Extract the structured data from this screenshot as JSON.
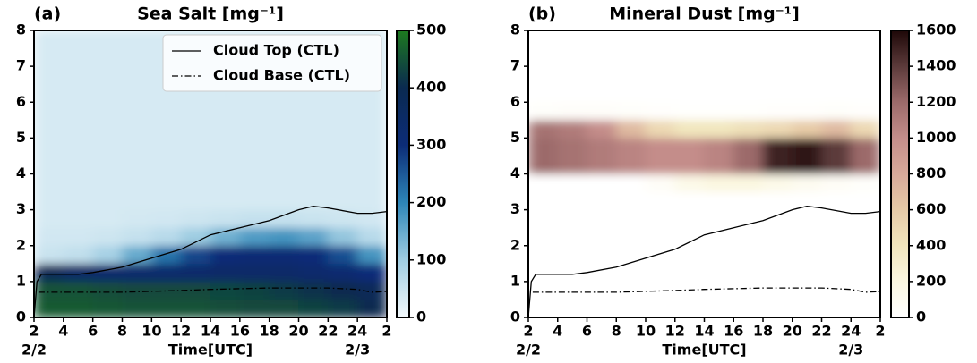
{
  "chart_data": [
    {
      "type": "heatmap",
      "panel_label": "(a)",
      "title": "Sea Salt [mg⁻¹]",
      "xlabel": "Time[UTC]",
      "xlim": [
        2,
        26
      ],
      "ylim": [
        0,
        8
      ],
      "xticks": [
        2,
        4,
        6,
        8,
        10,
        12,
        14,
        16,
        18,
        20,
        22,
        24,
        {
          "value": 26,
          "label": "2"
        }
      ],
      "date_labels": [
        {
          "value": 2,
          "label": "2/2"
        },
        {
          "value": 24,
          "label": "2/3"
        }
      ],
      "yticks": [
        0,
        1,
        2,
        3,
        4,
        5,
        6,
        7,
        8
      ],
      "x_edges": [
        2,
        4,
        6,
        8,
        10,
        12,
        14,
        16,
        18,
        20,
        22,
        24,
        26
      ],
      "y_edges": [
        0,
        0.5,
        1,
        1.5,
        2,
        2.5,
        3,
        3.5,
        4,
        4.5,
        5,
        5.5,
        6,
        6.5,
        7,
        7.5,
        8
      ],
      "z": [
        [
          460,
          460,
          455,
          450,
          450,
          450,
          445,
          440,
          440,
          430,
          420,
          400
        ],
        [
          450,
          450,
          445,
          440,
          440,
          440,
          435,
          430,
          420,
          410,
          400,
          380
        ],
        [
          380,
          340,
          330,
          330,
          330,
          335,
          340,
          340,
          340,
          330,
          320,
          300
        ],
        [
          50,
          60,
          90,
          150,
          220,
          270,
          300,
          310,
          310,
          300,
          260,
          180
        ],
        [
          40,
          40,
          45,
          55,
          70,
          100,
          140,
          170,
          180,
          160,
          110,
          70
        ],
        [
          35,
          35,
          35,
          38,
          40,
          45,
          50,
          55,
          55,
          50,
          45,
          40
        ],
        [
          35,
          35,
          35,
          35,
          35,
          35,
          35,
          35,
          35,
          35,
          35,
          35
        ],
        [
          35,
          35,
          35,
          35,
          35,
          35,
          35,
          35,
          35,
          35,
          35,
          35
        ],
        [
          35,
          35,
          35,
          35,
          35,
          35,
          35,
          35,
          35,
          35,
          35,
          35
        ],
        [
          35,
          35,
          35,
          35,
          35,
          35,
          35,
          35,
          35,
          35,
          35,
          35
        ],
        [
          35,
          35,
          35,
          35,
          35,
          35,
          35,
          35,
          35,
          35,
          35,
          35
        ],
        [
          35,
          35,
          35,
          35,
          35,
          35,
          35,
          35,
          35,
          35,
          35,
          35
        ],
        [
          35,
          35,
          35,
          35,
          35,
          35,
          35,
          35,
          35,
          35,
          35,
          35
        ],
        [
          35,
          35,
          35,
          35,
          35,
          35,
          35,
          35,
          35,
          35,
          35,
          35
        ],
        [
          35,
          35,
          35,
          35,
          35,
          35,
          35,
          35,
          35,
          35,
          35,
          35
        ],
        [
          35,
          35,
          35,
          35,
          35,
          35,
          35,
          35,
          35,
          35,
          35,
          35
        ]
      ],
      "clim": [
        0,
        500
      ],
      "cticks": [
        0,
        100,
        200,
        300,
        400,
        500
      ],
      "colormap": [
        "#f3f9fc",
        "#9fcde2",
        "#2d86b8",
        "#0c2c78",
        "#0a2a50",
        "#1d7a1f"
      ],
      "legend": "upper right",
      "series": [
        {
          "name": "Cloud Top (CTL)",
          "color": "#000000",
          "style": "solid",
          "x": [
            2,
            2.2,
            2.5,
            4,
            5,
            6,
            8,
            10,
            12,
            14,
            16,
            18,
            20,
            21,
            22,
            24,
            25,
            26
          ],
          "values": [
            0,
            1.0,
            1.2,
            1.2,
            1.2,
            1.25,
            1.4,
            1.65,
            1.9,
            2.3,
            2.5,
            2.7,
            3.0,
            3.1,
            3.05,
            2.9,
            2.9,
            2.95
          ]
        },
        {
          "name": "Cloud Base (CTL)",
          "color": "#000000",
          "style": "dashdot",
          "x": [
            2.3,
            4,
            8,
            12,
            14,
            16,
            18,
            20,
            22,
            24,
            25,
            26
          ],
          "values": [
            0.7,
            0.7,
            0.7,
            0.75,
            0.78,
            0.8,
            0.82,
            0.82,
            0.82,
            0.78,
            0.7,
            0.72
          ]
        }
      ]
    },
    {
      "type": "heatmap",
      "panel_label": "(b)",
      "title": "Mineral Dust [mg⁻¹]",
      "xlabel": "Time[UTC]",
      "xlim": [
        2,
        26
      ],
      "ylim": [
        0,
        8
      ],
      "xticks": [
        2,
        4,
        6,
        8,
        10,
        12,
        14,
        16,
        18,
        20,
        22,
        24,
        {
          "value": 26,
          "label": "2"
        }
      ],
      "date_labels": [
        {
          "value": 2,
          "label": "2/2"
        },
        {
          "value": 24,
          "label": "2/3"
        }
      ],
      "yticks": [
        0,
        1,
        2,
        3,
        4,
        5,
        6,
        7,
        8
      ],
      "x_edges": [
        2,
        4,
        6,
        8,
        10,
        12,
        14,
        16,
        18,
        20,
        22,
        24,
        26
      ],
      "y_edges": [
        0,
        0.5,
        1,
        1.5,
        2,
        2.5,
        3,
        3.5,
        4,
        4.5,
        5,
        5.5,
        6,
        6.5,
        7,
        7.5,
        8
      ],
      "z": [
        [
          0,
          0,
          0,
          0,
          0,
          0,
          0,
          0,
          0,
          0,
          0,
          0
        ],
        [
          0,
          0,
          0,
          0,
          0,
          0,
          0,
          0,
          0,
          0,
          0,
          0
        ],
        [
          0,
          0,
          0,
          0,
          0,
          0,
          0,
          0,
          0,
          0,
          0,
          0
        ],
        [
          0,
          0,
          0,
          0,
          0,
          0,
          0,
          0,
          0,
          0,
          0,
          0
        ],
        [
          0,
          0,
          0,
          0,
          0,
          0,
          0,
          0,
          0,
          0,
          0,
          0
        ],
        [
          0,
          0,
          0,
          0,
          0,
          0,
          0,
          0,
          0,
          0,
          0,
          0
        ],
        [
          0,
          0,
          0,
          0,
          0,
          0,
          0,
          0,
          0,
          0,
          0,
          0
        ],
        [
          0,
          0,
          0,
          0,
          50,
          150,
          200,
          200,
          150,
          100,
          60,
          30
        ],
        [
          1200,
          1150,
          1100,
          1050,
          1000,
          1000,
          1050,
          1200,
          1500,
          1550,
          1400,
          1200
        ],
        [
          1200,
          1150,
          1100,
          1050,
          1000,
          1000,
          1050,
          1200,
          1500,
          1550,
          1400,
          1200
        ],
        [
          1150,
          1100,
          1000,
          700,
          500,
          400,
          400,
          450,
          500,
          600,
          700,
          500
        ],
        [
          30,
          40,
          40,
          30,
          20,
          10,
          10,
          10,
          20,
          20,
          30,
          20
        ],
        [
          0,
          0,
          0,
          0,
          0,
          0,
          0,
          0,
          0,
          0,
          0,
          0
        ],
        [
          0,
          0,
          0,
          0,
          0,
          0,
          0,
          0,
          0,
          0,
          0,
          0
        ],
        [
          0,
          0,
          0,
          0,
          0,
          0,
          0,
          0,
          0,
          0,
          0,
          0
        ],
        [
          0,
          0,
          0,
          0,
          0,
          0,
          0,
          0,
          0,
          0,
          0,
          0
        ]
      ],
      "clim": [
        0,
        1600
      ],
      "cticks": [
        0,
        200,
        400,
        600,
        800,
        1000,
        1200,
        1400,
        1600
      ],
      "colormap": [
        "#ffffff",
        "#fbf7e0",
        "#f1e6bd",
        "#e6caa6",
        "#d8a99a",
        "#c48d8a",
        "#9c6a6a",
        "#5c3a3a",
        "#1e0808"
      ],
      "series": [
        {
          "color": "#000000",
          "style": "solid",
          "x": [
            2,
            2.2,
            2.5,
            4,
            5,
            6,
            8,
            10,
            12,
            14,
            16,
            18,
            20,
            21,
            22,
            24,
            25,
            26
          ],
          "values": [
            0,
            1.0,
            1.2,
            1.2,
            1.2,
            1.25,
            1.4,
            1.65,
            1.9,
            2.3,
            2.5,
            2.7,
            3.0,
            3.1,
            3.05,
            2.9,
            2.9,
            2.95
          ]
        },
        {
          "color": "#000000",
          "style": "dashdot",
          "x": [
            2.3,
            4,
            8,
            12,
            14,
            16,
            18,
            20,
            22,
            24,
            25,
            26
          ],
          "values": [
            0.7,
            0.7,
            0.7,
            0.75,
            0.78,
            0.8,
            0.82,
            0.82,
            0.82,
            0.78,
            0.7,
            0.72
          ]
        }
      ]
    }
  ]
}
